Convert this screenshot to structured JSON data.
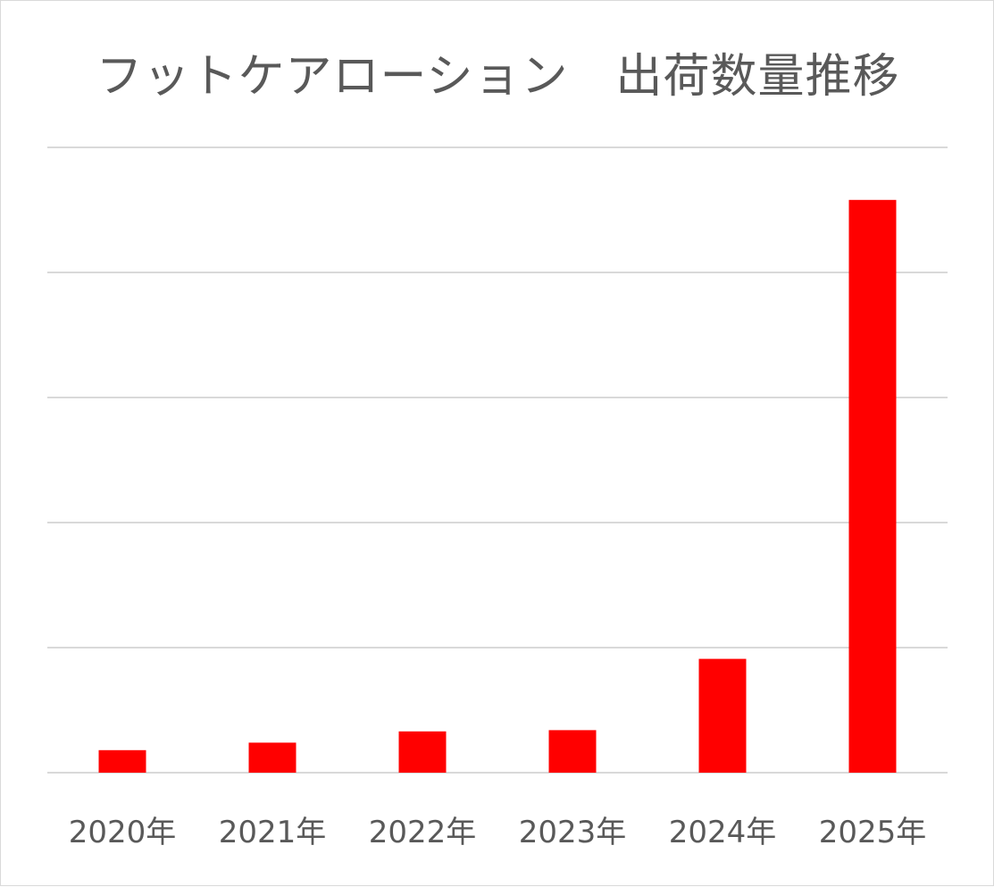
{
  "chart_data": {
    "type": "bar",
    "title": "フットケアローション　出荷数量推移",
    "categories": [
      "2020年",
      "2021年",
      "2022年",
      "2023年",
      "2024年",
      "2025年"
    ],
    "values": [
      0.9,
      1.2,
      1.65,
      1.7,
      4.55,
      22.9
    ],
    "ylim": [
      0,
      25
    ],
    "y_gridlines": [
      0,
      5,
      10,
      15,
      20,
      25
    ],
    "y_tick_labels_shown": false,
    "grid": true,
    "legend": "none",
    "colors": {
      "bar": "#ff0000",
      "grid": "#d9d9d9",
      "text": "#595959"
    }
  }
}
